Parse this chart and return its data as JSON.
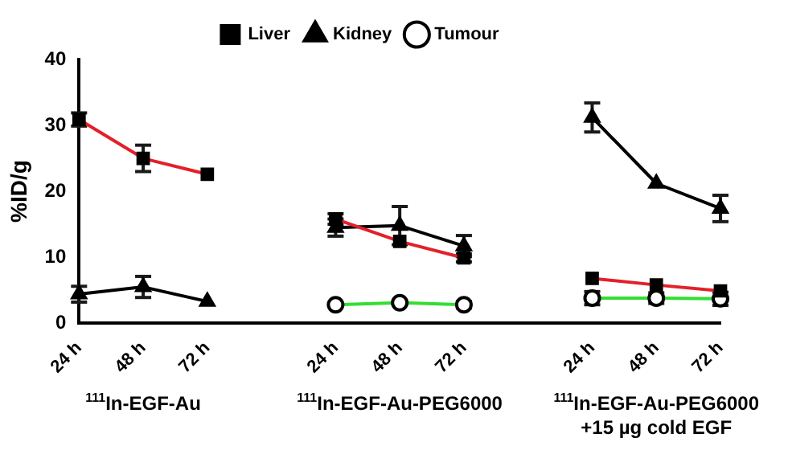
{
  "chart_data": {
    "type": "line",
    "ylabel": "%ID/g",
    "categories": [
      "24 h",
      "48 h",
      "72 h",
      null,
      "24 h",
      "48 h",
      "72 h",
      null,
      "24 h",
      "48 h",
      "72 h"
    ],
    "series": [
      {
        "name": "Liver",
        "color": "#e3202a",
        "marker": "square",
        "values": [
          30.9,
          25.0,
          22.6,
          null,
          15.8,
          12.4,
          9.9,
          null,
          6.8,
          5.8,
          4.9
        ],
        "errors": [
          1.0,
          2.0,
          null,
          null,
          0.8,
          null,
          0.6,
          null,
          null,
          null,
          null
        ]
      },
      {
        "name": "Kidney",
        "color": "#000000",
        "marker": "triangle",
        "values": [
          4.4,
          5.5,
          3.3,
          null,
          14.5,
          14.8,
          11.7,
          null,
          31.2,
          21.2,
          17.4
        ],
        "errors": [
          1.2,
          1.6,
          null,
          null,
          1.3,
          2.9,
          1.6,
          null,
          2.2,
          null,
          2.0
        ]
      },
      {
        "name": "Tumour",
        "color": "#33dd33",
        "marker": "circle",
        "values": [
          null,
          null,
          null,
          null,
          2.8,
          3.1,
          2.8,
          null,
          3.8,
          3.8,
          3.7
        ],
        "errors": [
          null,
          null,
          null,
          null,
          null,
          null,
          0.5,
          null,
          1.0,
          0.8,
          1.0
        ]
      }
    ],
    "ylim": [
      0,
      40
    ],
    "yticks": [
      0,
      10,
      20,
      30,
      40
    ],
    "grid": false,
    "legend": "top",
    "annotations": [
      "$^{111}$In-EGF-Au",
      "$^{111}$In-EGF-Au-PEG6000",
      "$^{111}$In-EGF-Au-PEG6000\n+15 µg cold EGF"
    ]
  }
}
